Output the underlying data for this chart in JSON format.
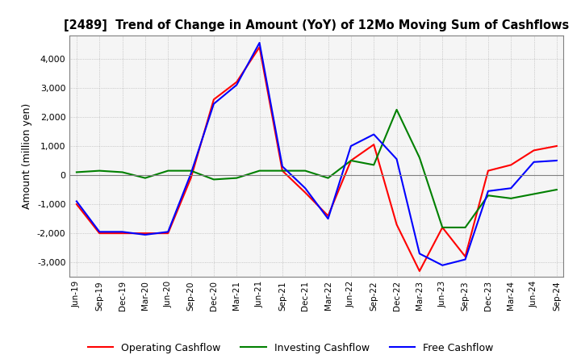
{
  "title": "[2489]  Trend of Change in Amount (YoY) of 12Mo Moving Sum of Cashflows",
  "ylabel": "Amount (million yen)",
  "ylim": [
    -3500,
    4800
  ],
  "yticks": [
    -3000,
    -2000,
    -1000,
    0,
    1000,
    2000,
    3000,
    4000
  ],
  "x_labels": [
    "Jun-19",
    "Sep-19",
    "Dec-19",
    "Mar-20",
    "Jun-20",
    "Sep-20",
    "Dec-20",
    "Mar-21",
    "Jun-21",
    "Sep-21",
    "Dec-21",
    "Mar-22",
    "Jun-22",
    "Sep-22",
    "Dec-22",
    "Mar-23",
    "Jun-23",
    "Sep-23",
    "Dec-23",
    "Mar-24",
    "Jun-24",
    "Sep-24"
  ],
  "operating": [
    -1000,
    -2000,
    -2000,
    -2000,
    -2000,
    -100,
    2600,
    3200,
    4400,
    150,
    -600,
    -1400,
    500,
    1050,
    -1700,
    -3300,
    -1800,
    -2800,
    150,
    350,
    850,
    1000
  ],
  "investing": [
    100,
    150,
    100,
    -100,
    150,
    150,
    -150,
    -100,
    150,
    150,
    150,
    -100,
    500,
    350,
    2250,
    600,
    -1800,
    -1800,
    -700,
    -800,
    -650,
    -500
  ],
  "free": [
    -900,
    -1950,
    -1950,
    -2050,
    -1950,
    50,
    2450,
    3100,
    4550,
    300,
    -450,
    -1500,
    1000,
    1400,
    550,
    -2700,
    -3100,
    -2900,
    -550,
    -450,
    450,
    500
  ],
  "operating_color": "#FF0000",
  "investing_color": "#008000",
  "free_color": "#0000FF",
  "background_color": "#FFFFFF",
  "plot_bg_color": "#F5F5F5",
  "grid_color": "#AAAAAA"
}
